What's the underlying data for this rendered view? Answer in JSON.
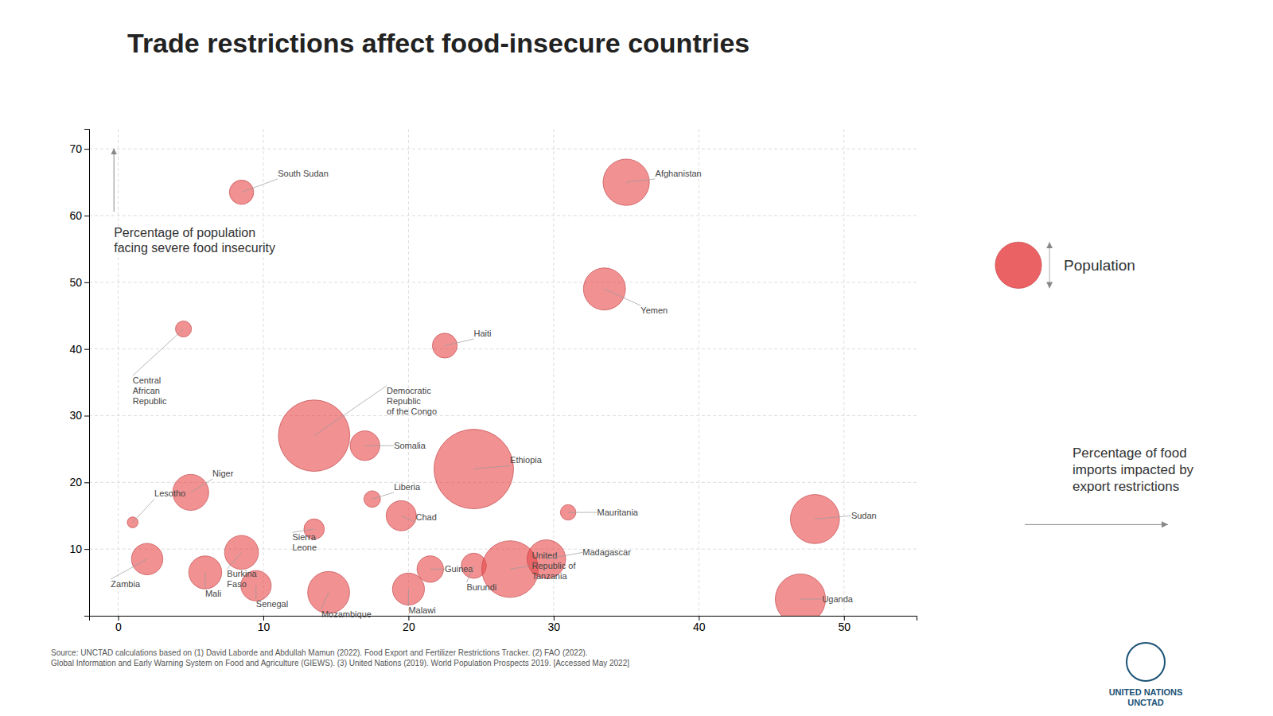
{
  "chart_data": {
    "type": "bubble",
    "title": "Trade restrictions affect food-insecure countries",
    "xlabel": "Percentage of food\nimports impacted by\nexport restrictions",
    "ylabel": "Percentage of population\nfacing severe food insecurity",
    "labels": [
      "Lesotho",
      "Zambia",
      "Niger",
      "Mali",
      "Central\nAfrican\nRepublic",
      "South Sudan",
      "Burkina\nFaso",
      "Senegal",
      "Democratic\nRepublic\nof the Congo",
      "Sierra\nLeone",
      "Mozambique",
      "Somalia",
      "Liberia",
      "Chad",
      "Malawi",
      "Guinea",
      "Haiti",
      "Ethiopia",
      "Burundi",
      "United\nRepublic of\nTanzania",
      "Madagascar",
      "Mauritania",
      "Afghanistan",
      "Yemen",
      "Sudan",
      "Uganda"
    ],
    "x": [
      1.0,
      2.0,
      5.0,
      6.0,
      4.5,
      8.5,
      8.5,
      9.5,
      13.5,
      13.5,
      14.5,
      17.0,
      17.5,
      19.5,
      20.0,
      21.5,
      22.5,
      24.5,
      24.5,
      27.0,
      29.5,
      31.0,
      35.0,
      33.5,
      48.0,
      47.0
    ],
    "values": [
      14.0,
      8.5,
      18.5,
      6.5,
      43.0,
      63.5,
      9.5,
      4.5,
      27.0,
      13.0,
      3.5,
      25.5,
      17.5,
      15.0,
      4.0,
      7.0,
      40.5,
      22.0,
      7.5,
      7.0,
      8.5,
      15.5,
      65.0,
      49.0,
      14.5,
      2.5
    ],
    "sizes": [
      2.2,
      18.4,
      24.2,
      20.3,
      4.8,
      11.0,
      21.5,
      17.2,
      95.0,
      7.8,
      32.8,
      16.4,
      5.1,
      16.9,
      19.1,
      13.1,
      11.5,
      117.9,
      11.9,
      60.0,
      27.7,
      4.5,
      40.0,
      33.0,
      44.9,
      47.1
    ],
    "color": "#e8474a",
    "xlim": [
      -2,
      55
    ],
    "ylim": [
      0,
      73
    ],
    "xticks": [
      0,
      10,
      20,
      30,
      40,
      50
    ],
    "yticks": [
      10,
      20,
      30,
      40,
      50,
      60,
      70
    ],
    "grid": true,
    "size_legend": {
      "label": "Population",
      "value": 40.0
    },
    "annotations": [
      "Source: UNCTAD calculations based on (1) David Laborde and Abdullah Mamun (2022). Food Export and Fertilizer Restrictions Tracker. (2) FAO (2022).\nGlobal Information and Early Warning System on Food and Agriculture (GIEWS). (3) United Nations (2019). World Population Prospects 2019. [Accessed May 2022]",
      "UNITED NATIONS\nUNCTAD"
    ]
  }
}
